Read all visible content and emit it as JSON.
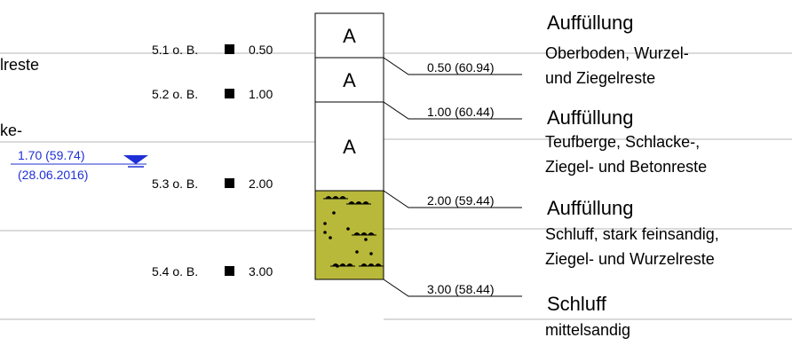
{
  "left_cut": {
    "text1": "lreste",
    "text2": "ke-"
  },
  "groundwater": {
    "depth_label": "1.70 (59.74)",
    "date_label": "(28.06.2016)",
    "color": "#1f2fd6"
  },
  "samples": [
    {
      "label": "5.1 o. B.",
      "depth": "0.50"
    },
    {
      "label": "5.2 o. B.",
      "depth": "1.00"
    },
    {
      "label": "5.3 o. B.",
      "depth": "2.00"
    },
    {
      "label": "5.4 o. B.",
      "depth": "3.00"
    }
  ],
  "column": {
    "layers": [
      {
        "symbol": "A",
        "from": 0.0,
        "to": 0.5,
        "fill": "#ffffff"
      },
      {
        "symbol": "A",
        "from": 0.5,
        "to": 1.0,
        "fill": "#ffffff"
      },
      {
        "symbol": "A",
        "from": 1.0,
        "to": 2.0,
        "fill": "#ffffff"
      },
      {
        "symbol": "",
        "from": 2.0,
        "to": 3.0,
        "fill": "#b8b83a"
      }
    ]
  },
  "boundaries": [
    {
      "depth": 0.5,
      "label": "0.50 (60.94)"
    },
    {
      "depth": 1.0,
      "label": "1.00 (60.44)"
    },
    {
      "depth": 2.0,
      "label": "2.00 (59.44)"
    },
    {
      "depth": 3.0,
      "label": "3.00 (58.44)"
    }
  ],
  "descriptions": [
    {
      "title": "Auffüllung",
      "lines": [
        "Oberboden, Wurzel-",
        "und Ziegelreste"
      ]
    },
    {
      "title": "Auffüllung",
      "lines": [
        "Teufberge, Schlacke-,",
        "Ziegel- und Betonreste"
      ]
    },
    {
      "title": "Auffüllung",
      "lines": [
        "Schluff, stark feinsandig,",
        "Ziegel- und Wurzelreste"
      ]
    },
    {
      "title": "Schluff",
      "lines": [
        "mittelsandig"
      ]
    }
  ]
}
